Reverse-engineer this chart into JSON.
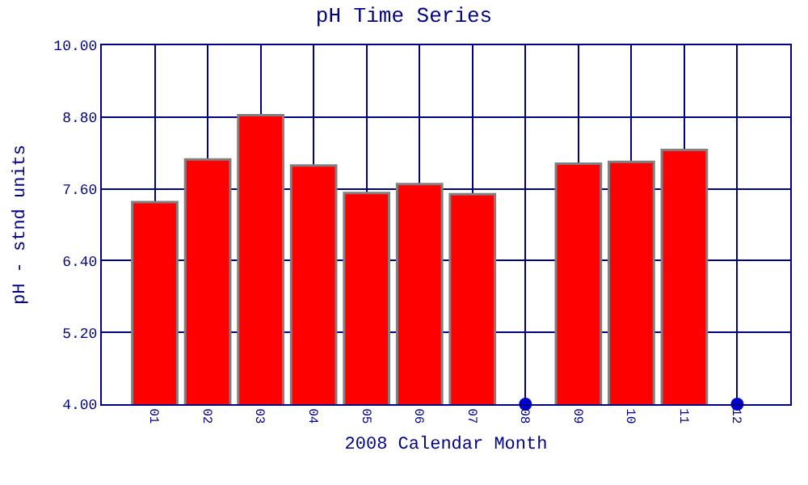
{
  "chart_data": {
    "type": "bar",
    "title": "pH Time Series",
    "xlabel": "2008 Calendar Month",
    "ylabel": "pH - stnd units",
    "categories": [
      "01",
      "02",
      "03",
      "04",
      "05",
      "06",
      "07",
      "08",
      "09",
      "10",
      "11",
      "12"
    ],
    "series": [
      {
        "color": "#ff0000",
        "values": [
          7.38,
          8.09,
          8.83,
          7.99,
          7.53,
          7.68,
          7.51,
          null,
          8.02,
          8.05,
          8.25,
          null
        ]
      },
      {
        "type": "scatter",
        "color": "#0000cc",
        "x": [
          "08",
          "12"
        ],
        "values": [
          4.0,
          4.0
        ],
        "marker": "circle"
      }
    ],
    "ylim": [
      4.0,
      10.0
    ],
    "yticks": [
      {
        "value": 4.0,
        "label": "4.00"
      },
      {
        "value": 5.2,
        "label": "5.20"
      },
      {
        "value": 6.4,
        "label": "6.40"
      },
      {
        "value": 7.6,
        "label": "7.60"
      },
      {
        "value": 8.8,
        "label": "8.80"
      },
      {
        "value": 10.0,
        "label": "10.00"
      }
    ],
    "grid": true
  }
}
